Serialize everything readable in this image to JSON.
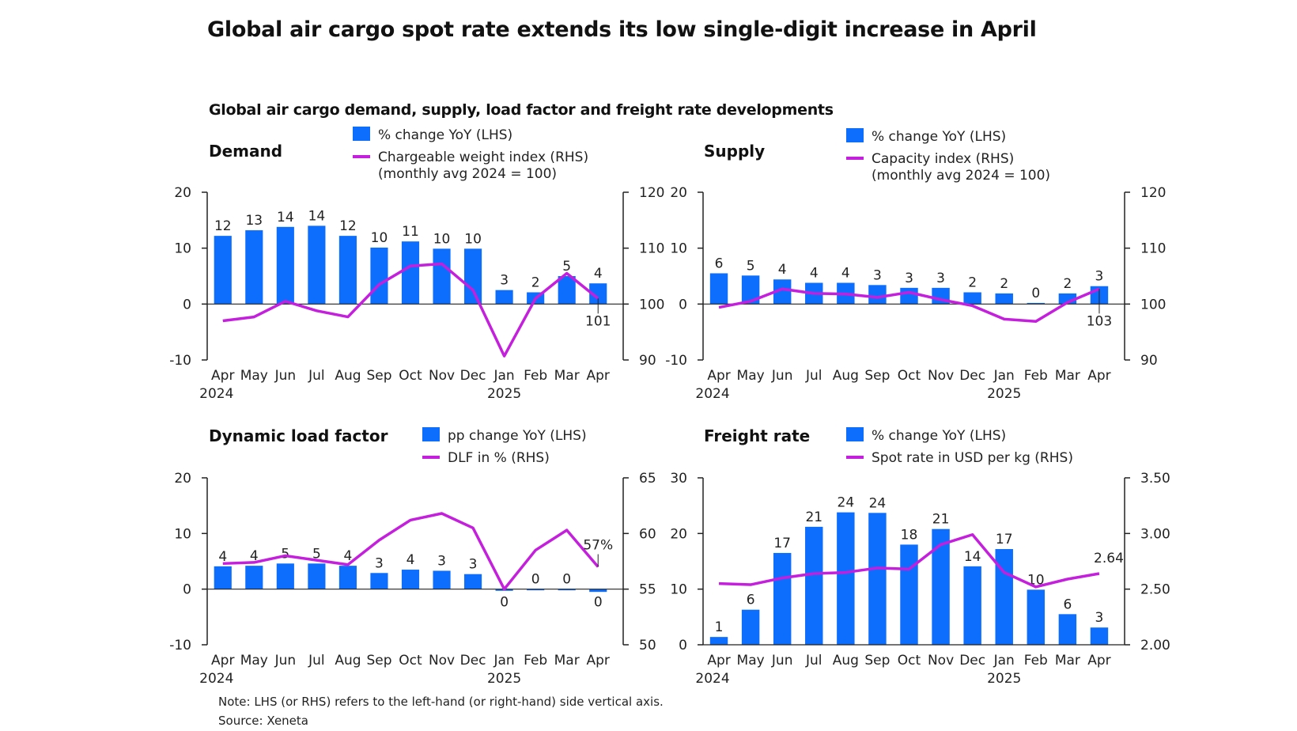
{
  "title": "Global air cargo spot rate extends its low single-digit increase in April",
  "subtitle": "Global air cargo demand, supply, load factor and freight rate developments",
  "note": "Note: LHS (or RHS) refers to the left-hand (or right-hand) side vertical axis.",
  "source": "Source: Xeneta",
  "colors": {
    "bar": "#0d6efd",
    "line": "#c41fdc",
    "axis": "#222222"
  },
  "chart_data": [
    {
      "id": "demand",
      "type": "bar+line",
      "title": "Demand",
      "categories": [
        "Apr",
        "May",
        "Jun",
        "Jul",
        "Aug",
        "Sep",
        "Oct",
        "Nov",
        "Dec",
        "Jan",
        "Feb",
        "Mar",
        "Apr"
      ],
      "year_labels": [
        {
          "index": 0,
          "label": "2024"
        },
        {
          "index": 9,
          "label": "2025"
        }
      ],
      "legend": {
        "bar": "% change YoY (LHS)",
        "line": [
          "Chargeable weight index (RHS)",
          "(monthly avg 2024 = 100)"
        ]
      },
      "lhs": {
        "range": [
          -10,
          20
        ],
        "ticks": [
          -10,
          0,
          10,
          20
        ],
        "tick_labels": [
          "-10",
          "0",
          "10",
          "20"
        ]
      },
      "rhs": {
        "range": [
          90,
          120
        ],
        "ticks": [
          90,
          100,
          110,
          120
        ],
        "tick_labels": [
          "90",
          "100",
          "110",
          "120"
        ]
      },
      "bars": {
        "name": "% change YoY (LHS)",
        "values": [
          12.2,
          13.2,
          13.8,
          14.0,
          12.2,
          10.1,
          11.2,
          9.9,
          9.9,
          2.5,
          2.1,
          5.0,
          3.7
        ],
        "labels": [
          "12",
          "13",
          "14",
          "14",
          "12",
          "10",
          "11",
          "10",
          "10",
          "3",
          "2",
          "5",
          "4"
        ]
      },
      "line": {
        "name": "Chargeable weight index (RHS)",
        "values": [
          97.0,
          97.7,
          100.5,
          98.8,
          97.7,
          103.5,
          106.8,
          107.2,
          102.5,
          90.7,
          101.0,
          105.5,
          101.0
        ],
        "end_label": "101"
      }
    },
    {
      "id": "supply",
      "type": "bar+line",
      "title": "Supply",
      "categories": [
        "Apr",
        "May",
        "Jun",
        "Jul",
        "Aug",
        "Sep",
        "Oct",
        "Nov",
        "Dec",
        "Jan",
        "Feb",
        "Mar",
        "Apr"
      ],
      "year_labels": [
        {
          "index": 0,
          "label": "2024"
        },
        {
          "index": 9,
          "label": "2025"
        }
      ],
      "legend": {
        "bar": "% change YoY (LHS)",
        "line": [
          "Capacity index (RHS)",
          "(monthly avg 2024 = 100)"
        ]
      },
      "lhs": {
        "range": [
          -10,
          20
        ],
        "ticks": [
          -10,
          0,
          10,
          20
        ],
        "tick_labels": [
          "-10",
          "0",
          "10",
          "20"
        ]
      },
      "rhs": {
        "range": [
          90,
          120
        ],
        "ticks": [
          90,
          100,
          110,
          120
        ],
        "tick_labels": [
          "90",
          "100",
          "110",
          "120"
        ]
      },
      "bars": {
        "name": "% change YoY (LHS)",
        "values": [
          5.5,
          5.1,
          4.4,
          3.8,
          3.8,
          3.4,
          2.9,
          2.9,
          2.1,
          1.9,
          0.2,
          1.9,
          3.2
        ],
        "labels": [
          "6",
          "5",
          "4",
          "4",
          "4",
          "3",
          "3",
          "3",
          "2",
          "2",
          "0",
          "2",
          "3"
        ]
      },
      "line": {
        "name": "Capacity index (RHS)",
        "values": [
          99.4,
          100.5,
          102.7,
          101.9,
          101.8,
          101.2,
          102.1,
          100.8,
          99.7,
          97.3,
          96.9,
          100.3,
          102.7
        ],
        "end_label": "103"
      }
    },
    {
      "id": "dlf",
      "type": "bar+line",
      "title": "Dynamic load factor",
      "categories": [
        "Apr",
        "May",
        "Jun",
        "Jul",
        "Aug",
        "Sep",
        "Oct",
        "Nov",
        "Dec",
        "Jan",
        "Feb",
        "Mar",
        "Apr"
      ],
      "year_labels": [
        {
          "index": 0,
          "label": "2024"
        },
        {
          "index": 9,
          "label": "2025"
        }
      ],
      "legend": {
        "bar": "pp change YoY (LHS)",
        "line": [
          "DLF in % (RHS)"
        ]
      },
      "lhs": {
        "range": [
          -10,
          20
        ],
        "ticks": [
          -10,
          0,
          10,
          20
        ],
        "tick_labels": [
          "-10",
          "0",
          "10",
          "20"
        ]
      },
      "rhs": {
        "range": [
          50,
          65
        ],
        "ticks": [
          50,
          55,
          60,
          65
        ],
        "tick_labels": [
          "50",
          "55",
          "60",
          "65"
        ]
      },
      "bars": {
        "name": "pp change YoY (LHS)",
        "values": [
          4.1,
          4.2,
          4.6,
          4.6,
          4.2,
          2.9,
          3.5,
          3.3,
          2.7,
          -0.3,
          0.0,
          0.0,
          -0.5
        ],
        "labels": [
          "4",
          "4",
          "5",
          "5",
          "4",
          "3",
          "4",
          "3",
          "3",
          "0",
          "0",
          "0",
          "0"
        ]
      },
      "line": {
        "name": "DLF in % (RHS)",
        "values": [
          57.3,
          57.4,
          58.0,
          57.6,
          57.2,
          59.4,
          61.2,
          61.8,
          60.5,
          55.0,
          58.5,
          60.3,
          57.0
        ],
        "end_label": "57%"
      }
    },
    {
      "id": "freight",
      "type": "bar+line",
      "title": "Freight rate",
      "categories": [
        "Apr",
        "May",
        "Jun",
        "Jul",
        "Aug",
        "Sep",
        "Oct",
        "Nov",
        "Dec",
        "Jan",
        "Feb",
        "Mar",
        "Apr"
      ],
      "year_labels": [
        {
          "index": 0,
          "label": "2024"
        },
        {
          "index": 9,
          "label": "2025"
        }
      ],
      "legend": {
        "bar": "% change YoY (LHS)",
        "line": [
          "Spot rate in USD per kg (RHS)"
        ]
      },
      "lhs": {
        "range": [
          0,
          30
        ],
        "ticks": [
          0,
          10,
          20,
          30
        ],
        "tick_labels": [
          "0",
          "10",
          "20",
          "30"
        ]
      },
      "rhs": {
        "range": [
          2.0,
          3.5
        ],
        "ticks": [
          2.0,
          2.5,
          3.0,
          3.5
        ],
        "tick_labels": [
          "2.00",
          "2.50",
          "3.00",
          "3.50"
        ]
      },
      "bars": {
        "name": "% change YoY (LHS)",
        "values": [
          1.4,
          6.3,
          16.5,
          21.2,
          23.8,
          23.7,
          18.0,
          20.8,
          14.1,
          17.2,
          9.9,
          5.5,
          3.1
        ],
        "labels": [
          "1",
          "6",
          "17",
          "21",
          "24",
          "24",
          "18",
          "21",
          "14",
          "17",
          "10",
          "6",
          "3"
        ]
      },
      "line": {
        "name": "Spot rate in USD per kg (RHS)",
        "values": [
          2.55,
          2.54,
          2.6,
          2.64,
          2.65,
          2.69,
          2.68,
          2.9,
          2.99,
          2.65,
          2.52,
          2.59,
          2.64
        ],
        "end_label": "2.64"
      }
    }
  ]
}
